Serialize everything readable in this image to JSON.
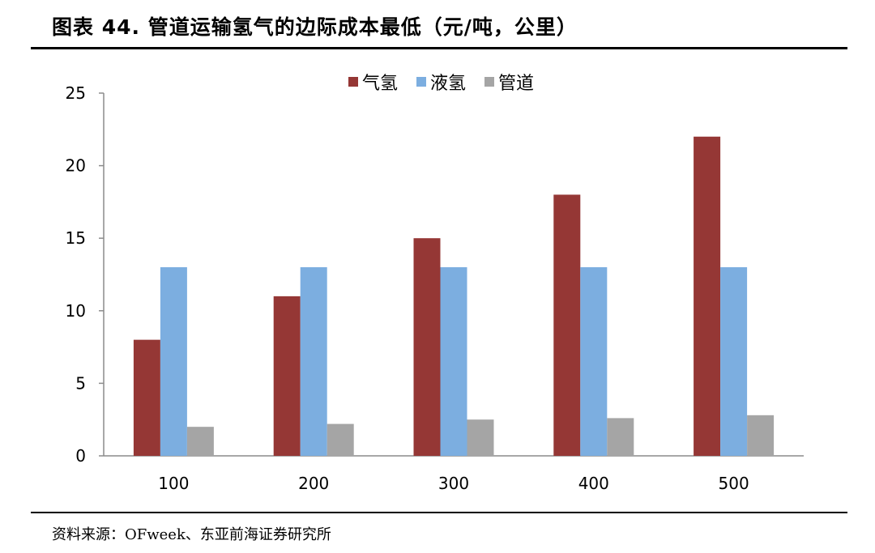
{
  "header": {
    "title": "图表 44. 管道运输氢气的边际成本最低（元/吨，公里）"
  },
  "footer": {
    "source": "资料来源：OFweek、东亚前海证券研究所"
  },
  "chart_data": {
    "type": "bar",
    "categories": [
      "100",
      "200",
      "300",
      "400",
      "500"
    ],
    "series": [
      {
        "name": "气氢",
        "color": "#953735",
        "values": [
          8,
          11,
          15,
          18,
          22
        ]
      },
      {
        "name": "液氢",
        "color": "#7caee0",
        "values": [
          13,
          13,
          13,
          13,
          13
        ]
      },
      {
        "name": "管道",
        "color": "#a5a5a5",
        "values": [
          2.0,
          2.2,
          2.5,
          2.6,
          2.8
        ]
      }
    ],
    "title": "",
    "xlabel": "",
    "ylabel": "",
    "ylim": [
      0,
      25
    ],
    "yticks": [
      0,
      5,
      10,
      15,
      20,
      25
    ],
    "grid": false,
    "legend_position": "top-center"
  }
}
